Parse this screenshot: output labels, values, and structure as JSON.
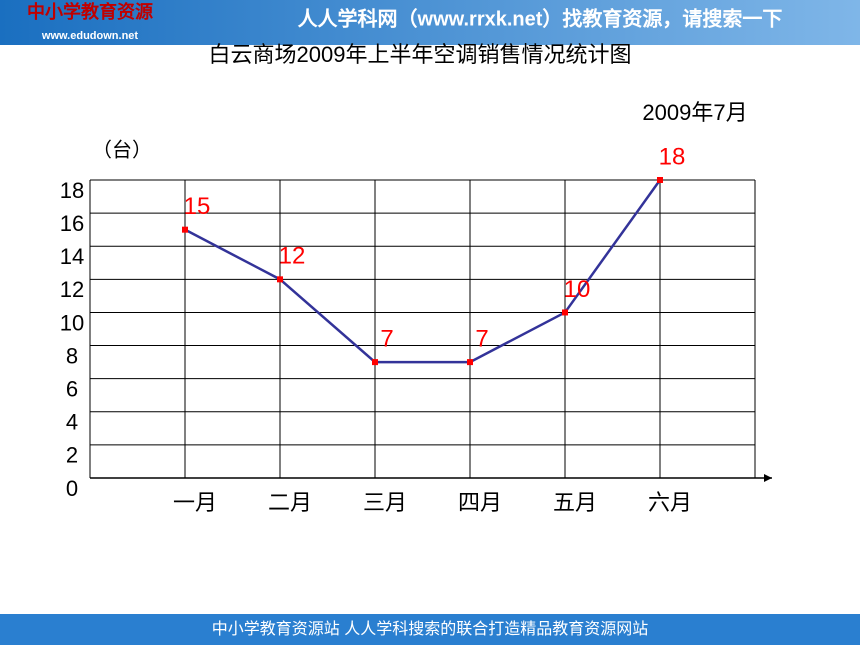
{
  "header": {
    "logo": "www.edudown.net",
    "banner": "人人学科网（www.rrxk.net）找教育资源，请搜索一下"
  },
  "footer": "中小学教育资源站 人人学科搜索的联合打造精品教育资源网站",
  "chart_data": {
    "type": "line",
    "title": "白云商场2009年上半年空调销售情况统计图",
    "subtitle": "2009年7月",
    "y_label": "（台）",
    "categories": [
      "一月",
      "二月",
      "三月",
      "四月",
      "五月",
      "六月"
    ],
    "values": [
      15,
      12,
      7,
      7,
      10,
      18
    ],
    "color": "#333399",
    "point_color": "#ff0000",
    "ylim": [
      0,
      18
    ],
    "yticks": [
      0,
      2,
      4,
      6,
      8,
      10,
      12,
      14,
      16,
      18
    ],
    "grid": true
  }
}
